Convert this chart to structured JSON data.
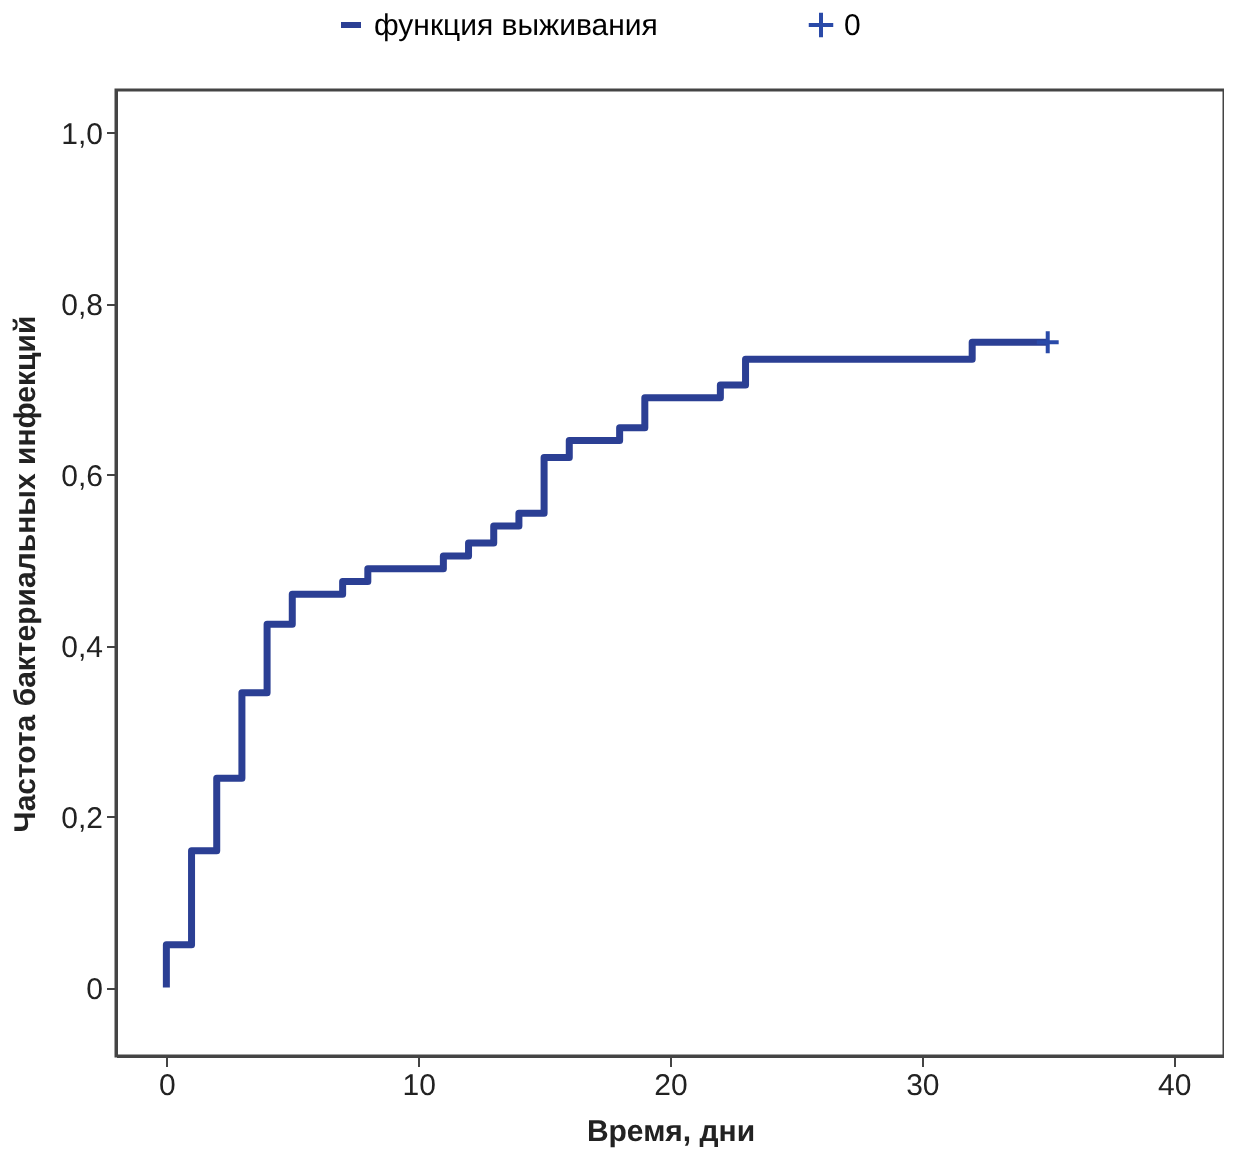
{
  "chart_data": {
    "type": "step",
    "xlabel": "Время, дни",
    "ylabel": "Частота бактериальных инфекций",
    "xlim": [
      -2,
      42
    ],
    "ylim": [
      -0.08,
      1.05
    ],
    "xticks": [
      0,
      10,
      20,
      30,
      40
    ],
    "yticks": [
      {
        "value": 0,
        "label": "0"
      },
      {
        "value": 0.2,
        "label": "0,2"
      },
      {
        "value": 0.4,
        "label": "0,4"
      },
      {
        "value": 0.6,
        "label": "0,6"
      },
      {
        "value": 0.8,
        "label": "0,8"
      },
      {
        "value": 1.0,
        "label": "1,0"
      }
    ],
    "grid": false,
    "legend": "top",
    "series": [
      {
        "name": "функция выживания",
        "color": "#2b3f94",
        "line_style": "solid",
        "x": [
          0,
          0,
          1,
          2,
          3,
          4,
          5,
          7,
          8,
          11,
          12,
          13,
          14,
          15,
          16,
          18,
          19,
          22,
          23,
          32,
          35
        ],
        "values": [
          0,
          0.05,
          0.16,
          0.245,
          0.345,
          0.425,
          0.46,
          0.475,
          0.49,
          0.505,
          0.52,
          0.54,
          0.555,
          0.62,
          0.64,
          0.655,
          0.69,
          0.705,
          0.735,
          0.755,
          0.755
        ]
      },
      {
        "name": "0",
        "type": "scatter",
        "marker": "cross",
        "color": "#2a4aa8",
        "x": [
          35
        ],
        "values": [
          0.755
        ]
      }
    ]
  }
}
